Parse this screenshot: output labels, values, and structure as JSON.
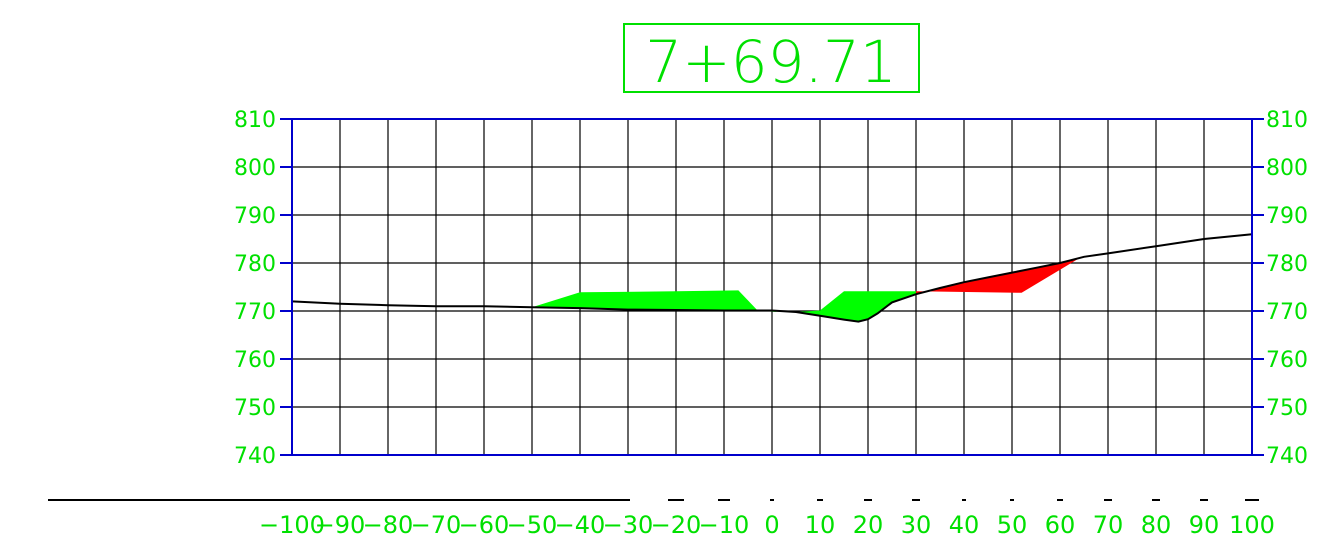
{
  "station": "7+69.71",
  "colors": {
    "label": "#00e000",
    "frame": "#0000cc",
    "grid": "#000000",
    "fill": "#00ff00",
    "cut": "#ff0000",
    "ground": "#000000"
  },
  "chart_data": {
    "type": "area",
    "x_ticks": [
      -100,
      -90,
      -80,
      -70,
      -60,
      -50,
      -40,
      -30,
      -20,
      -10,
      0,
      10,
      20,
      30,
      40,
      50,
      60,
      70,
      80,
      90,
      100
    ],
    "x_tick_labels": [
      "−100",
      "−90",
      "−80",
      "−70",
      "−60",
      "−50",
      "−40",
      "−30",
      "−20",
      "−10",
      "0",
      "10",
      "20",
      "30",
      "40",
      "50",
      "60",
      "70",
      "80",
      "90",
      "100"
    ],
    "y_ticks": [
      740,
      750,
      760,
      770,
      780,
      790,
      800,
      810
    ],
    "y_tick_labels": [
      "740",
      "750",
      "760",
      "770",
      "780",
      "790",
      "800",
      "810"
    ],
    "xlim": [
      -100,
      100
    ],
    "ylim": [
      740,
      810
    ],
    "grid": true,
    "ground_profile": [
      [
        -100,
        772
      ],
      [
        -90,
        771.5
      ],
      [
        -80,
        771.2
      ],
      [
        -70,
        771
      ],
      [
        -60,
        771
      ],
      [
        -50,
        770.8
      ],
      [
        -40,
        770.6
      ],
      [
        -30,
        770.3
      ],
      [
        -20,
        770.2
      ],
      [
        -10,
        770.1
      ],
      [
        0,
        770.1
      ],
      [
        5,
        769.8
      ],
      [
        10,
        769
      ],
      [
        15,
        768.2
      ],
      [
        18,
        767.8
      ],
      [
        20,
        768.3
      ],
      [
        22,
        769.5
      ],
      [
        25,
        771.8
      ],
      [
        30,
        773.5
      ],
      [
        35,
        774.8
      ],
      [
        40,
        776
      ],
      [
        45,
        777
      ],
      [
        50,
        778
      ],
      [
        55,
        779
      ],
      [
        60,
        780
      ],
      [
        65,
        781.3
      ],
      [
        70,
        782
      ],
      [
        80,
        783.5
      ],
      [
        90,
        785
      ],
      [
        100,
        786
      ]
    ],
    "fill_areas": [
      [
        [
          -50,
          770.8
        ],
        [
          -40,
          773.9
        ],
        [
          -20,
          774.1
        ],
        [
          -7,
          774.3
        ],
        [
          -3,
          770.1
        ],
        [
          -10,
          770.1
        ],
        [
          -20,
          770.2
        ],
        [
          -30,
          770.3
        ],
        [
          -40,
          770.6
        ]
      ],
      [
        [
          5,
          769.8
        ],
        [
          10,
          770.1
        ],
        [
          15,
          774.1
        ],
        [
          30,
          774.1
        ],
        [
          30,
          773.5
        ],
        [
          25,
          771.8
        ],
        [
          22,
          769.5
        ],
        [
          20,
          768.3
        ],
        [
          18,
          767.8
        ],
        [
          15,
          768.2
        ],
        [
          10,
          769
        ]
      ],
      [
        [
          -3,
          770.1
        ],
        [
          1,
          769.8
        ],
        [
          0,
          770.1
        ]
      ]
    ],
    "cut_areas": [
      [
        [
          30,
          773.5
        ],
        [
          35,
          774.8
        ],
        [
          40,
          776
        ],
        [
          45,
          777
        ],
        [
          50,
          778
        ],
        [
          55,
          779
        ],
        [
          60,
          780
        ],
        [
          64,
          781
        ],
        [
          52,
          773.8
        ],
        [
          30,
          774.1
        ]
      ]
    ]
  }
}
